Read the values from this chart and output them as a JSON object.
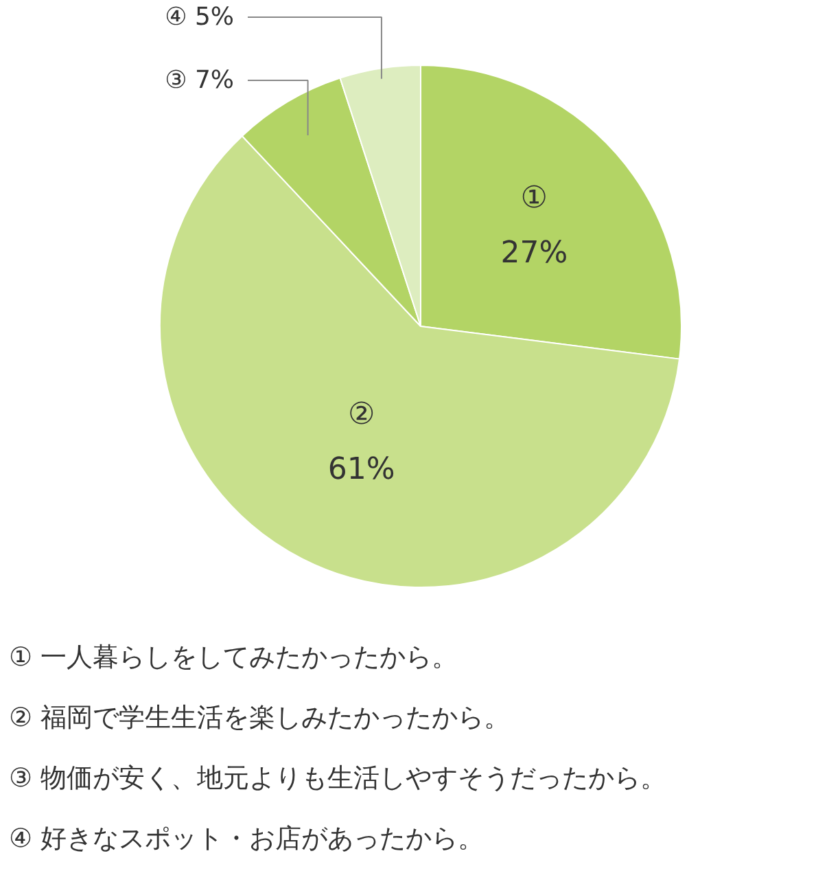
{
  "chart_data": {
    "type": "pie",
    "categories": [
      "①",
      "②",
      "③",
      "④"
    ],
    "values": [
      27,
      61,
      7,
      5
    ],
    "value_labels": [
      "27%",
      "61%",
      "7%",
      "5%"
    ],
    "colors": [
      "#b3d465",
      "#c8e08c",
      "#b3d465",
      "#ddedbf"
    ],
    "annotations": [
      "① 一人暮らしをしてみたかったから。",
      "② 福岡で学生生活を楽しみたかったから。",
      "③ 物価が安く、地元よりも生活しやすそうだったから。",
      "④ 好きなスポット・お店があったから。"
    ]
  }
}
